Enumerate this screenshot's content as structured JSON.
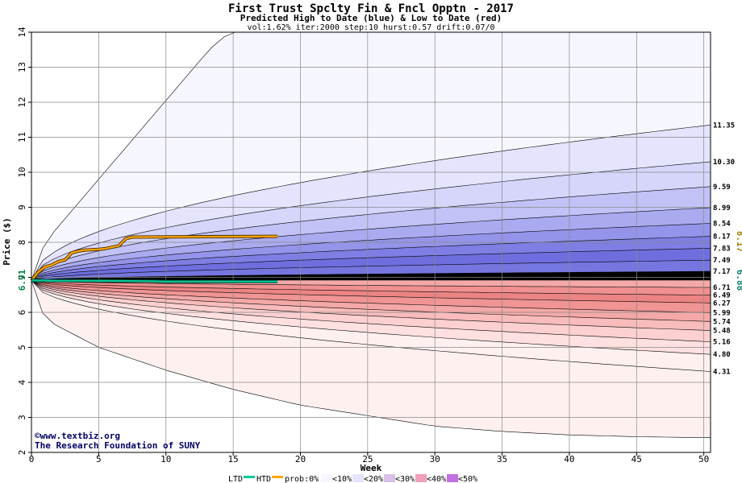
{
  "title": "First Trust Spclty Fin & Fncl Opptn - 2017",
  "subtitle": "Predicted High to Date (blue) &  Low to Date (red)",
  "params": "vol:1.62% iter:2000 step:10 hurst:0.57 drift:0.07/0",
  "credit": {
    "line1": "©www.textbiz.org",
    "line2": "The Research Foundation of SUNY"
  },
  "legend": {
    "ltd": "LTD",
    "htd": "HTD",
    "prob": "prob:0%",
    "bins": [
      "<10%",
      "<20%",
      "<30%",
      "<40%",
      "<50%"
    ]
  },
  "colors": {
    "htd_line": "#ffa500",
    "ltd_line": "#00cc99",
    "start_label": "#008040",
    "end_htd_label": "#a08000",
    "end_ltd_label": "#008066"
  },
  "chart_data": {
    "type": "area",
    "xlabel": "Week",
    "ylabel": "Price ($)",
    "xlim": [
      0,
      50.5
    ],
    "ylim": [
      2,
      14
    ],
    "x_ticks": [
      0,
      5,
      10,
      15,
      20,
      25,
      30,
      35,
      40,
      45,
      50
    ],
    "y_ticks": [
      2,
      3,
      4,
      5,
      6,
      7,
      8,
      9,
      10,
      11,
      12,
      13,
      14
    ],
    "start_price": "6.91",
    "start_value": 6.91,
    "end_htd_label": "8.17",
    "end_ltd_label": "6.88",
    "high_quantiles": [
      {
        "label": "11.35",
        "value": 11.35
      },
      {
        "label": "10.30",
        "value": 10.3
      },
      {
        "label": "9.59",
        "value": 9.59
      },
      {
        "label": "8.99",
        "value": 8.99
      },
      {
        "label": "8.54",
        "value": 8.54
      },
      {
        "label": "8.17",
        "value": 8.17
      },
      {
        "label": "7.83",
        "value": 7.83
      },
      {
        "label": "7.49",
        "value": 7.49
      },
      {
        "label": "7.17",
        "value": 7.17
      }
    ],
    "low_quantiles": [
      {
        "label": "6.71",
        "value": 6.71
      },
      {
        "label": "6.49",
        "value": 6.49
      },
      {
        "label": "6.27",
        "value": 6.27
      },
      {
        "label": "5.99",
        "value": 5.99
      },
      {
        "label": "5.74",
        "value": 5.74
      },
      {
        "label": "5.48",
        "value": 5.48
      },
      {
        "label": "5.16",
        "value": 5.16
      },
      {
        "label": "4.80",
        "value": 4.8
      },
      {
        "label": "4.31",
        "value": 4.31
      }
    ],
    "high_envelope_max": [
      [
        0,
        6.91
      ],
      [
        1,
        8.0
      ],
      [
        3,
        8.9
      ],
      [
        5,
        9.8
      ],
      [
        7,
        10.7
      ],
      [
        9,
        11.6
      ],
      [
        11,
        12.5
      ],
      [
        13,
        13.4
      ],
      [
        14,
        13.8
      ],
      [
        15,
        14.0
      ]
    ],
    "low_envelope_min": [
      [
        0,
        6.91
      ],
      [
        1,
        5.8
      ],
      [
        3,
        5.4
      ],
      [
        5,
        5.0
      ],
      [
        10,
        4.35
      ],
      [
        15,
        3.8
      ],
      [
        20,
        3.35
      ],
      [
        25,
        3.05
      ],
      [
        30,
        2.75
      ],
      [
        35,
        2.6
      ],
      [
        40,
        2.5
      ],
      [
        45,
        2.45
      ],
      [
        50,
        2.42
      ]
    ],
    "series": [
      {
        "name": "HTD",
        "values": [
          [
            0,
            6.91
          ],
          [
            0.5,
            7.15
          ],
          [
            1,
            7.3
          ],
          [
            1.5,
            7.35
          ],
          [
            2,
            7.45
          ],
          [
            2.5,
            7.5
          ],
          [
            3,
            7.7
          ],
          [
            3.5,
            7.75
          ],
          [
            4,
            7.78
          ],
          [
            5,
            7.8
          ],
          [
            5.5,
            7.82
          ],
          [
            6.5,
            7.9
          ],
          [
            7,
            8.1
          ],
          [
            7.5,
            8.15
          ],
          [
            18.3,
            8.17
          ]
        ]
      },
      {
        "name": "LTD",
        "values": [
          [
            0,
            6.91
          ],
          [
            2,
            6.9
          ],
          [
            5,
            6.9
          ],
          [
            9,
            6.89
          ],
          [
            10,
            6.88
          ],
          [
            18.3,
            6.88
          ]
        ]
      }
    ]
  }
}
